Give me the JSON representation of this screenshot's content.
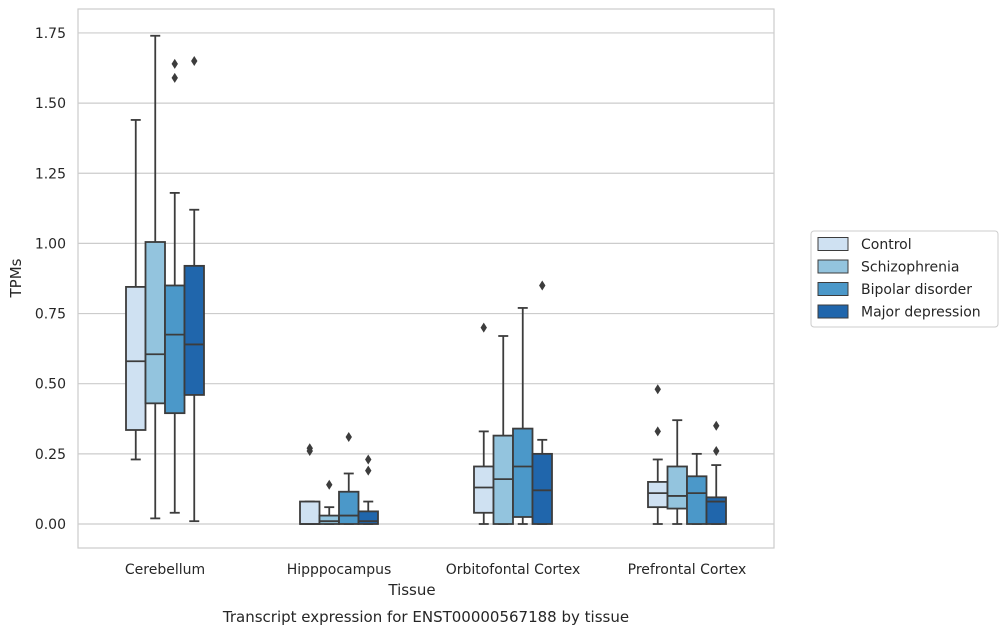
{
  "caption": "Transcript expression for ENST00000567188 by tissue",
  "chart_data": {
    "type": "box",
    "title": "",
    "xlabel": "Tissue",
    "ylabel": "TPMs",
    "ylim": [
      -0.085,
      1.83
    ],
    "yticks": [
      0.0,
      0.25,
      0.5,
      0.75,
      1.0,
      1.25,
      1.5,
      1.75
    ],
    "ytick_labels": [
      "0.00",
      "0.25",
      "0.50",
      "0.75",
      "1.00",
      "1.25",
      "1.50",
      "1.75"
    ],
    "grid": "horizontal",
    "legend_position": "right",
    "categories": [
      "Cerebellum",
      "Hipppocampus",
      "Orbitofontal Cortex",
      "Prefrontal Cortex"
    ],
    "series": [
      {
        "name": "Control",
        "color": "#cfe1f2",
        "boxes": [
          {
            "whisker_low": 0.23,
            "q1": 0.335,
            "median": 0.58,
            "q3": 0.845,
            "whisker_high": 1.44,
            "outliers": []
          },
          {
            "whisker_low": 0.0,
            "q1": 0.0,
            "median": 0.0,
            "q3": 0.08,
            "whisker_high": 0.08,
            "outliers": [
              0.26,
              0.27
            ]
          },
          {
            "whisker_low": 0.0,
            "q1": 0.04,
            "median": 0.13,
            "q3": 0.205,
            "whisker_high": 0.33,
            "outliers": [
              0.7
            ]
          },
          {
            "whisker_low": 0.0,
            "q1": 0.06,
            "median": 0.11,
            "q3": 0.15,
            "whisker_high": 0.23,
            "outliers": [
              0.33,
              0.48
            ]
          }
        ]
      },
      {
        "name": "Schizophrenia",
        "color": "#93c4de",
        "boxes": [
          {
            "whisker_low": 0.02,
            "q1": 0.43,
            "median": 0.605,
            "q3": 1.005,
            "whisker_high": 1.74,
            "outliers": []
          },
          {
            "whisker_low": 0.0,
            "q1": 0.0,
            "median": 0.01,
            "q3": 0.03,
            "whisker_high": 0.06,
            "outliers": [
              0.14
            ]
          },
          {
            "whisker_low": 0.0,
            "q1": 0.0,
            "median": 0.16,
            "q3": 0.315,
            "whisker_high": 0.67,
            "outliers": []
          },
          {
            "whisker_low": 0.0,
            "q1": 0.055,
            "median": 0.1,
            "q3": 0.205,
            "whisker_high": 0.37,
            "outliers": []
          }
        ]
      },
      {
        "name": "Bipolar disorder",
        "color": "#4b98c9",
        "boxes": [
          {
            "whisker_low": 0.04,
            "q1": 0.395,
            "median": 0.675,
            "q3": 0.85,
            "whisker_high": 1.18,
            "outliers": [
              1.59,
              1.64
            ]
          },
          {
            "whisker_low": 0.0,
            "q1": 0.0,
            "median": 0.03,
            "q3": 0.115,
            "whisker_high": 0.18,
            "outliers": [
              0.31
            ]
          },
          {
            "whisker_low": 0.0,
            "q1": 0.025,
            "median": 0.205,
            "q3": 0.34,
            "whisker_high": 0.77,
            "outliers": []
          },
          {
            "whisker_low": 0.0,
            "q1": 0.0,
            "median": 0.11,
            "q3": 0.17,
            "whisker_high": 0.25,
            "outliers": []
          }
        ]
      },
      {
        "name": "Major depression",
        "color": "#2066ac",
        "boxes": [
          {
            "whisker_low": 0.01,
            "q1": 0.46,
            "median": 0.64,
            "q3": 0.92,
            "whisker_high": 1.12,
            "outliers": [
              1.65
            ]
          },
          {
            "whisker_low": 0.0,
            "q1": 0.0,
            "median": 0.01,
            "q3": 0.045,
            "whisker_high": 0.08,
            "outliers": [
              0.19,
              0.23
            ]
          },
          {
            "whisker_low": 0.0,
            "q1": 0.0,
            "median": 0.12,
            "q3": 0.25,
            "whisker_high": 0.3,
            "outliers": [
              0.85
            ]
          },
          {
            "whisker_low": 0.0,
            "q1": 0.0,
            "median": 0.08,
            "q3": 0.095,
            "whisker_high": 0.21,
            "outliers": [
              0.26,
              0.35
            ]
          }
        ]
      }
    ]
  }
}
